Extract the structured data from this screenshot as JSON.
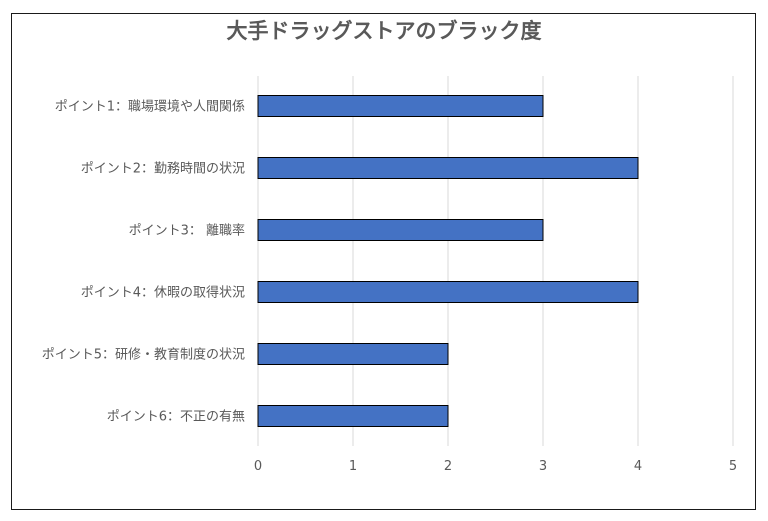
{
  "chart_data": {
    "type": "bar",
    "orientation": "horizontal",
    "title": "大手ドラッグストアのブラック度",
    "xlabel": "",
    "ylabel": "",
    "categories": [
      "ポイント1：職場環境や人間関係",
      "ポイント2：勤務時間の状況",
      "ポイント3： 離職率",
      "ポイント4：休暇の取得状況",
      "ポイント5：研修・教育制度の状況",
      "ポイント6：不正の有無"
    ],
    "values": [
      3,
      4,
      3,
      4,
      2,
      2
    ],
    "xlim": [
      0,
      5
    ],
    "xticks": [
      "0",
      "1",
      "2",
      "3",
      "4",
      "5"
    ],
    "grid": true,
    "legend": "none",
    "colors": {
      "bar": "#4472C4",
      "bar_border": "#000000",
      "grid": "#d9d9d9",
      "text": "#595959"
    }
  }
}
